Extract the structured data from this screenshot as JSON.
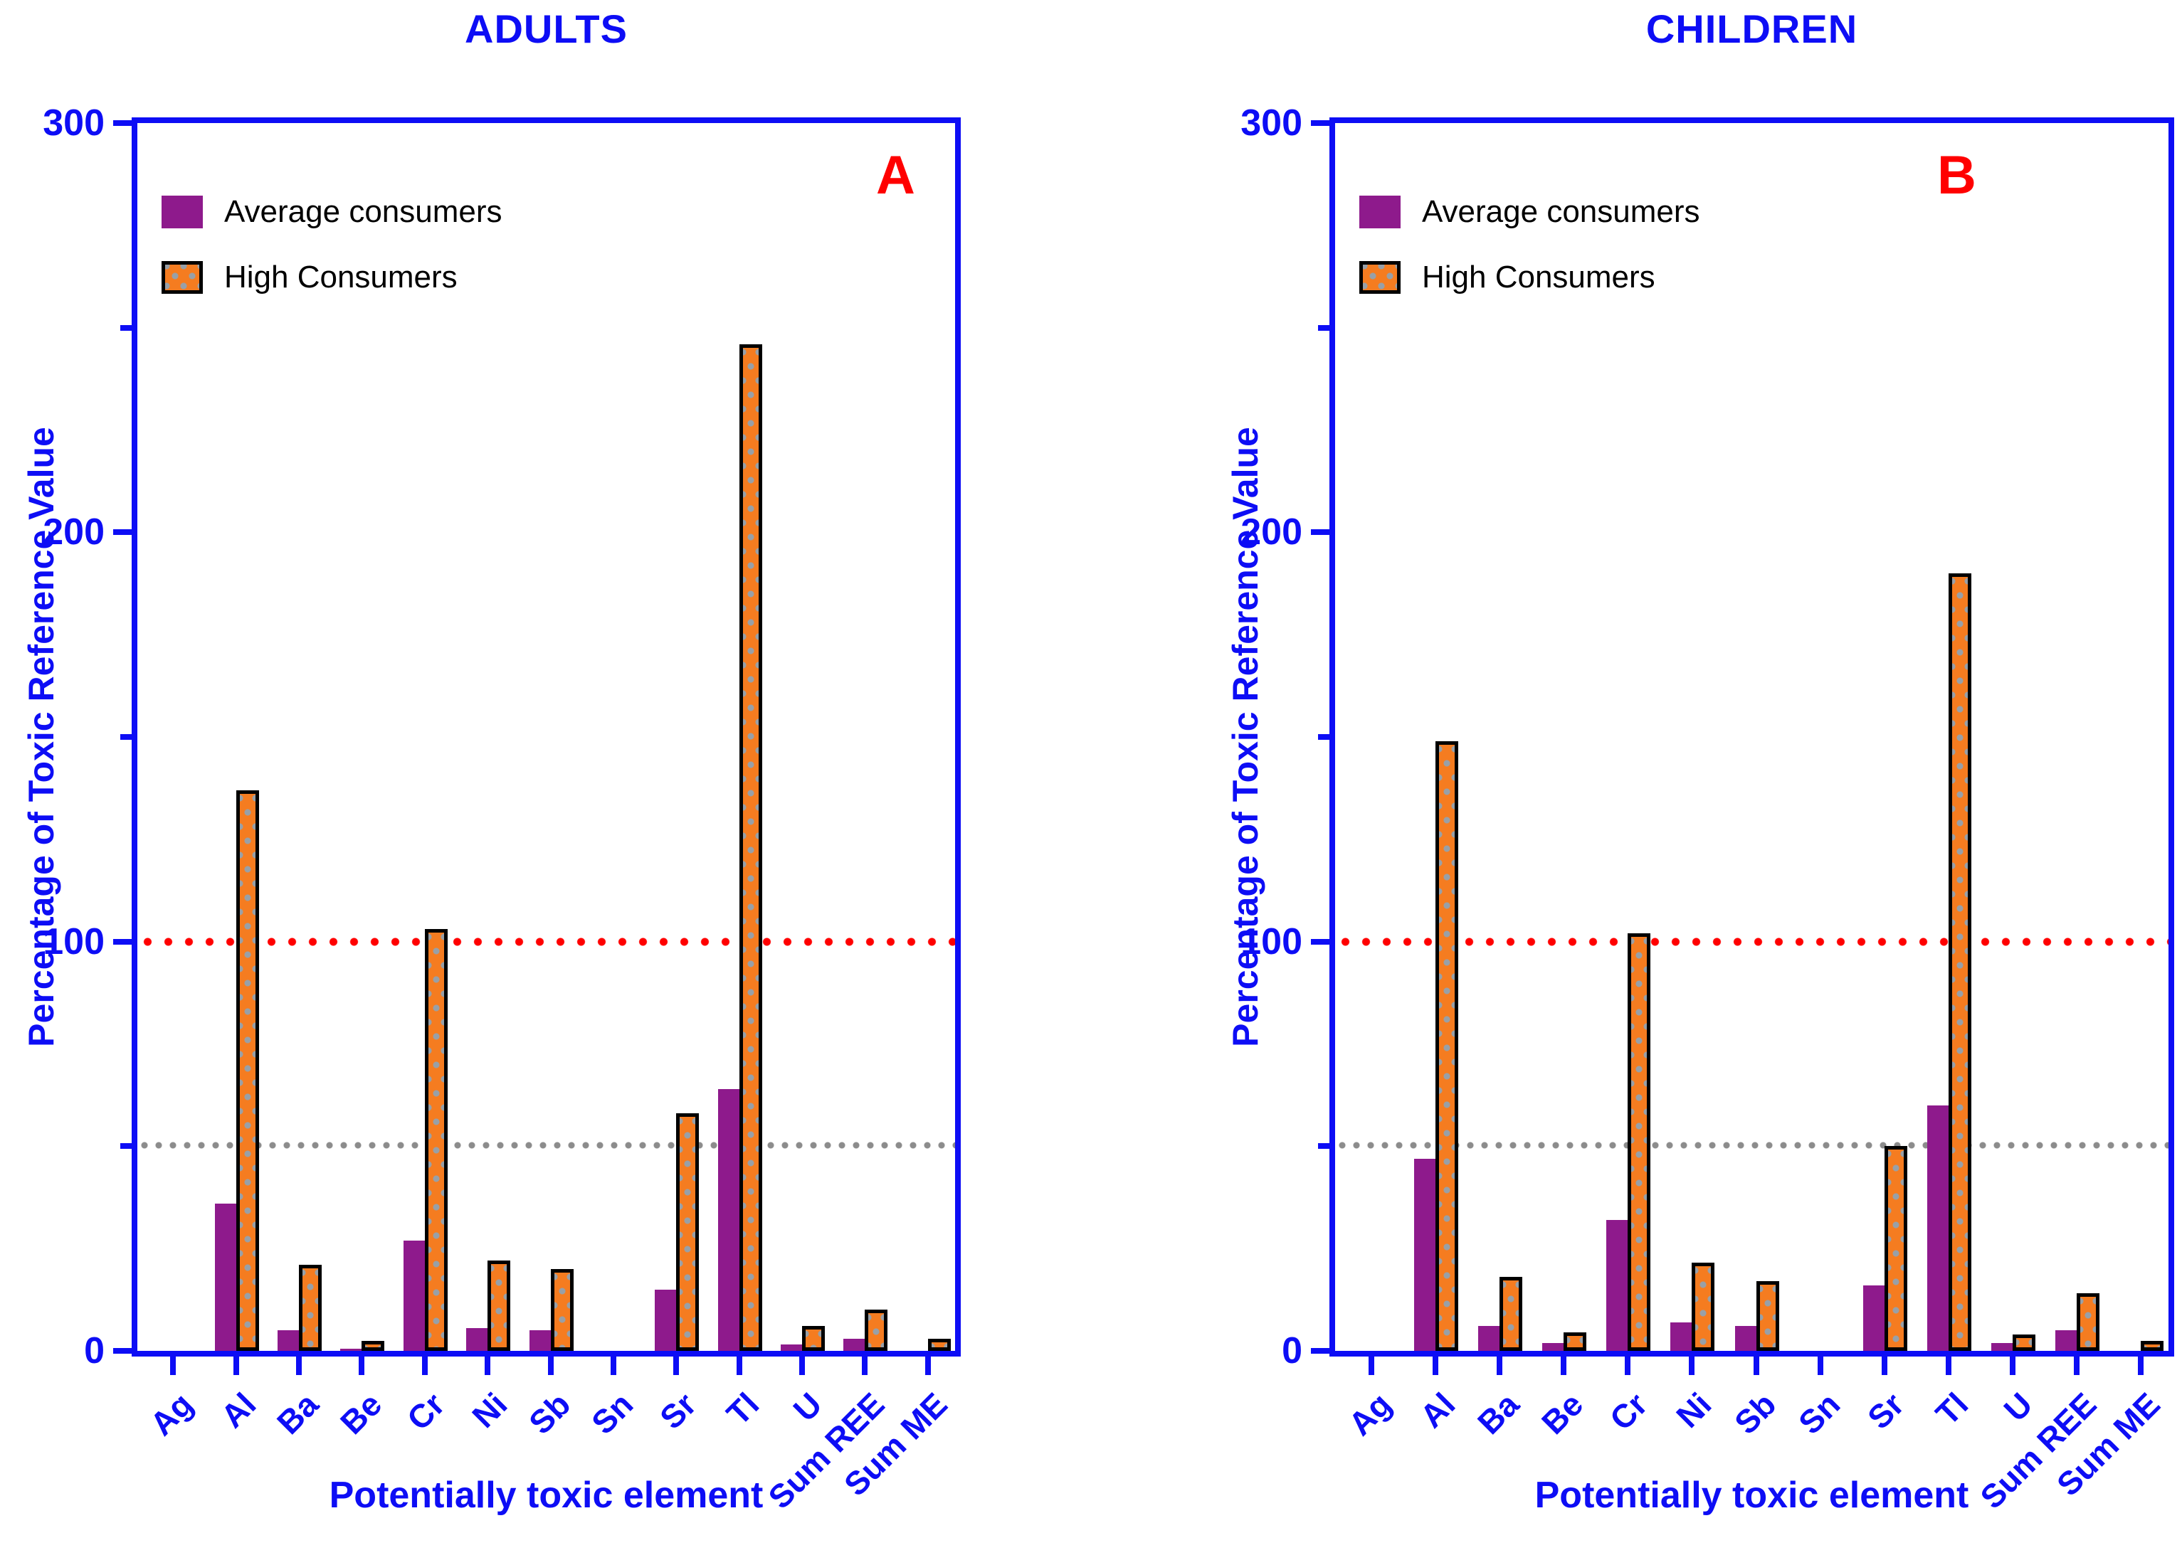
{
  "figure": {
    "legend_labels": [
      "Average consumers",
      "High Consumers"
    ],
    "colors": {
      "axis_blue": "#0d0df5",
      "average_purple": "#8e1a8c",
      "high_orange": "#f57c20",
      "pattern_dot_gray": "#98a0a8",
      "reference_red": "#ff0000",
      "reference_gray": "#8c8c8c",
      "panel_letter_red": "#ff0000"
    }
  },
  "chart_data": [
    {
      "type": "bar",
      "title": "ADULTS",
      "panel_letter": "A",
      "xlabel": "Potentially toxic element",
      "ylabel": "Percentage of Toxic Reference Value",
      "categories": [
        "Ag",
        "Al",
        "Ba",
        "Be",
        "Cr",
        "Ni",
        "Sb",
        "Sn",
        "Sr",
        "Tl",
        "U",
        "Sum REE",
        "Sum ME"
      ],
      "series": [
        {
          "name": "Average consumers",
          "color": "#8e1a8c",
          "values": [
            0,
            36,
            5,
            0.5,
            27,
            5.5,
            5,
            0,
            15,
            64,
            1.5,
            3,
            0
          ]
        },
        {
          "name": "High Consumers",
          "color": "#f57c20",
          "values": [
            0,
            137,
            21,
            2.5,
            103,
            22,
            20,
            0,
            58,
            246,
            6,
            10,
            3
          ]
        }
      ],
      "ylim": [
        0,
        300
      ],
      "yticks": [
        0,
        100,
        200,
        300
      ],
      "yticks_minor": [
        50,
        150,
        250
      ],
      "grid": false,
      "legend_position": "top-left",
      "reference_lines": [
        {
          "y": 100,
          "color": "#ff0000",
          "style": "dotted"
        },
        {
          "y": 50,
          "color": "#8c8c8c",
          "style": "dotted"
        }
      ]
    },
    {
      "type": "bar",
      "title": "CHILDREN",
      "panel_letter": "B",
      "xlabel": "Potentially toxic element",
      "ylabel": "Percentage of Toxic Reference Value",
      "categories": [
        "Ag",
        "Al",
        "Ba",
        "Be",
        "Cr",
        "Ni",
        "Sb",
        "Sn",
        "Sr",
        "Tl",
        "U",
        "Sum REE",
        "Sum ME"
      ],
      "series": [
        {
          "name": "Average consumers",
          "color": "#8e1a8c",
          "values": [
            0,
            47,
            6,
            2,
            32,
            7,
            6,
            0,
            16,
            60,
            2,
            5,
            0
          ]
        },
        {
          "name": "High Consumers",
          "color": "#f57c20",
          "values": [
            0,
            149,
            18,
            4.5,
            102,
            21.5,
            17,
            0,
            50,
            190,
            4,
            14,
            2.5
          ]
        }
      ],
      "ylim": [
        0,
        300
      ],
      "yticks": [
        0,
        100,
        200,
        300
      ],
      "yticks_minor": [
        50,
        150,
        250
      ],
      "grid": false,
      "legend_position": "top-left",
      "reference_lines": [
        {
          "y": 100,
          "color": "#ff0000",
          "style": "dotted"
        },
        {
          "y": 50,
          "color": "#8c8c8c",
          "style": "dotted"
        }
      ]
    }
  ]
}
